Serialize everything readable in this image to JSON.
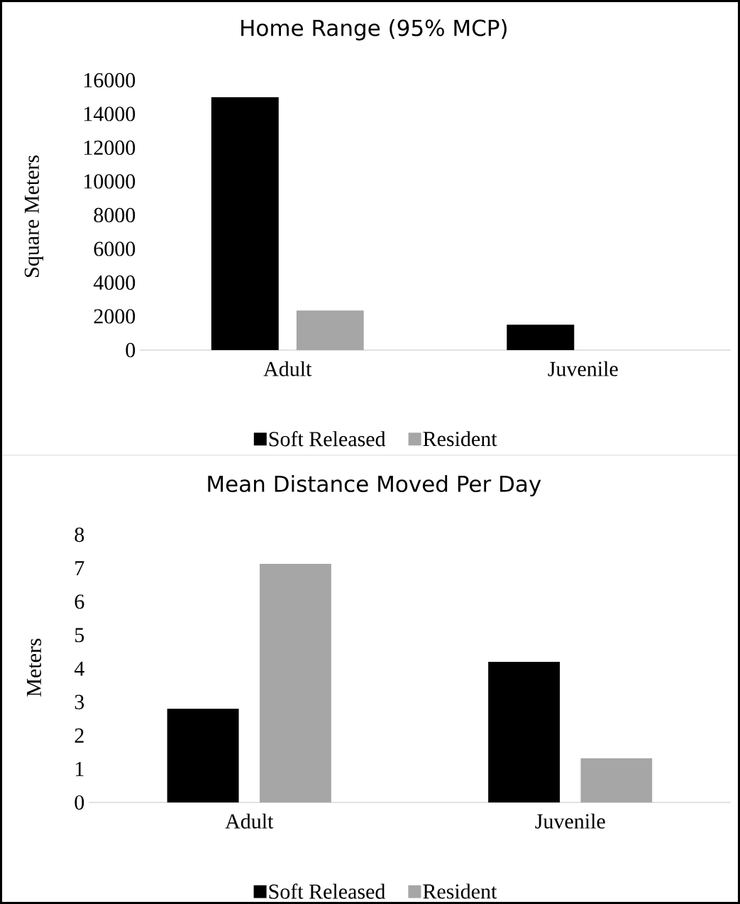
{
  "chart_data": [
    {
      "type": "bar",
      "title": "Home Range (95% MCP)",
      "ylabel": "Square Meters",
      "categories": [
        "Adult",
        "Juvenile"
      ],
      "series": [
        {
          "name": "Soft Released",
          "color": "#000000",
          "values": [
            15000,
            1500
          ]
        },
        {
          "name": "Resident",
          "color": "#a6a6a6",
          "values": [
            2350,
            null
          ]
        }
      ],
      "ylim": [
        0,
        16000
      ],
      "yticks": [
        0,
        2000,
        4000,
        6000,
        8000,
        10000,
        12000,
        14000,
        16000
      ],
      "legend": "bottom"
    },
    {
      "type": "bar",
      "title": "Mean Distance Moved Per Day",
      "ylabel": "Meters",
      "categories": [
        "Adult",
        "Juvenile"
      ],
      "series": [
        {
          "name": "Soft Released",
          "color": "#000000",
          "values": [
            2.8,
            4.2
          ]
        },
        {
          "name": "Resident",
          "color": "#a6a6a6",
          "values": [
            7.13,
            1.32
          ]
        }
      ],
      "ylim": [
        0,
        8
      ],
      "yticks": [
        0,
        1,
        2,
        3,
        4,
        5,
        6,
        7,
        8
      ],
      "legend": "bottom"
    }
  ]
}
